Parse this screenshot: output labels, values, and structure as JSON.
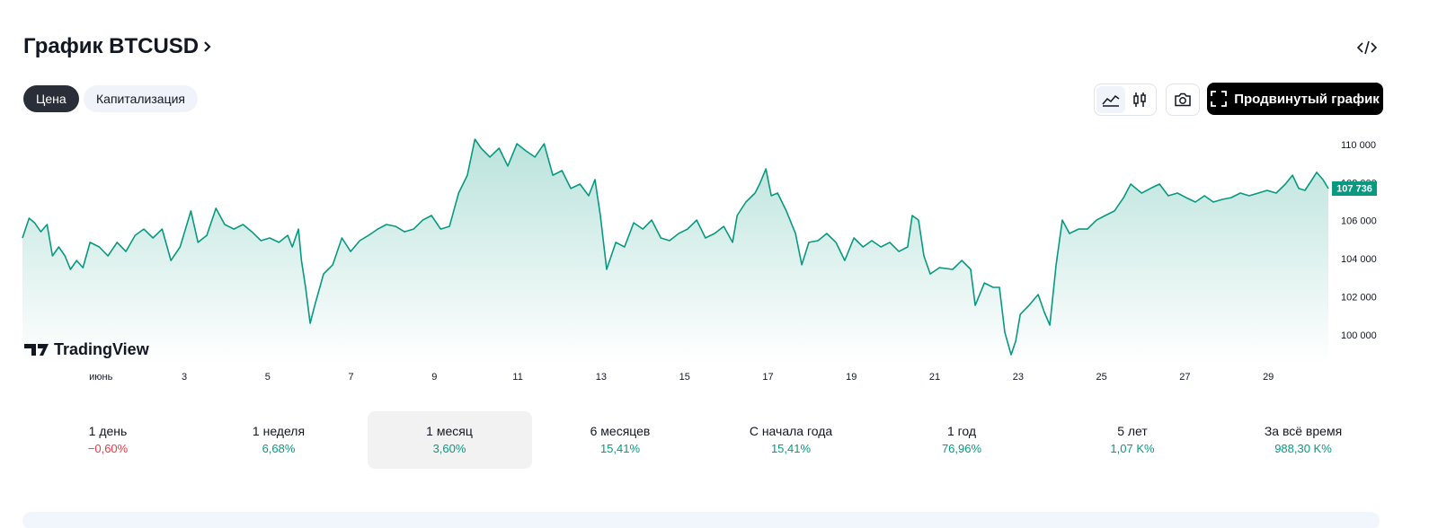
{
  "header": {
    "title": "График BTCUSD",
    "tabs": [
      "Цена",
      "Капитализация"
    ],
    "button": "Продвинутый график"
  },
  "chart_data": {
    "type": "area",
    "watermark": "TradingView",
    "color": "#089981",
    "x": [
      -0.88,
      -0.72,
      -0.59,
      -0.44,
      -0.29,
      -0.16,
      -0.01,
      0.14,
      0.27,
      0.42,
      0.57,
      0.74,
      0.96,
      1.17,
      1.39,
      1.6,
      1.82,
      2.03,
      2.25,
      2.47,
      2.68,
      2.9,
      3.16,
      3.33,
      3.54,
      3.76,
      3.97,
      4.19,
      4.41,
      4.62,
      4.84,
      5.05,
      5.27,
      5.48,
      5.59,
      5.74,
      5.81,
      5.91,
      6.02,
      6.13,
      6.34,
      6.56,
      6.78,
      6.99,
      7.21,
      7.42,
      7.64,
      7.85,
      8.07,
      8.28,
      8.5,
      8.72,
      8.93,
      9.15,
      9.36,
      9.58,
      9.79,
      9.97,
      10.12,
      10.33,
      10.55,
      10.76,
      10.98,
      11.19,
      11.41,
      11.63,
      11.84,
      12.06,
      12.27,
      12.49,
      12.7,
      12.85,
      12.98,
      13.13,
      13.35,
      13.56,
      13.78,
      14.0,
      14.21,
      14.43,
      14.64,
      14.86,
      15.07,
      15.29,
      15.5,
      15.72,
      15.94,
      16.15,
      16.26,
      16.47,
      16.69,
      16.8,
      16.95,
      17.08,
      17.23,
      17.44,
      17.66,
      17.81,
      17.98,
      18.2,
      18.41,
      18.63,
      18.84,
      19.06,
      19.28,
      19.49,
      19.71,
      19.92,
      20.14,
      20.35,
      20.46,
      20.61,
      20.74,
      20.89,
      21.11,
      21.43,
      21.65,
      21.86,
      21.97,
      22.19,
      22.4,
      22.55,
      22.68,
      22.83,
      22.94,
      23.05,
      23.26,
      23.48,
      23.63,
      23.76,
      23.91,
      24.06,
      24.23,
      24.45,
      24.66,
      24.88,
      25.09,
      25.31,
      25.53,
      25.7,
      25.96,
      26.17,
      26.39,
      26.6,
      26.82,
      27.03,
      27.25,
      27.47,
      27.68,
      27.9,
      28.11,
      28.33,
      28.54,
      28.76,
      28.97,
      29.19,
      29.41,
      29.58,
      29.73,
      29.88,
      30.05,
      30.16,
      30.31,
      30.44
    ],
    "values": [
      105140,
      106180,
      105940,
      105470,
      105850,
      104200,
      104670,
      104200,
      103490,
      103960,
      103580,
      104910,
      104670,
      104200,
      104910,
      104430,
      105280,
      105610,
      105140,
      105610,
      103960,
      104670,
      106560,
      104910,
      105280,
      106700,
      105850,
      105610,
      105850,
      105470,
      105000,
      105140,
      104910,
      105280,
      104670,
      105610,
      103960,
      102550,
      100660,
      101600,
      103250,
      103730,
      105140,
      104430,
      105000,
      105280,
      105610,
      105850,
      105750,
      105470,
      105610,
      106080,
      106320,
      105610,
      105750,
      107500,
      108440,
      110330,
      109860,
      109390,
      109860,
      108920,
      110090,
      109720,
      109390,
      110090,
      108440,
      108680,
      107740,
      107970,
      107360,
      108210,
      106320,
      103490,
      104910,
      104670,
      105940,
      105610,
      106080,
      105140,
      105000,
      105380,
      105610,
      106080,
      105140,
      105380,
      105750,
      104910,
      106320,
      107030,
      107500,
      107970,
      108770,
      107360,
      107500,
      106560,
      105380,
      103730,
      104910,
      105000,
      105380,
      104910,
      103960,
      105140,
      104670,
      105000,
      104670,
      104910,
      104430,
      104670,
      106320,
      106080,
      104200,
      103250,
      103580,
      103490,
      103960,
      103490,
      101600,
      102780,
      102550,
      102550,
      100190,
      99010,
      99720,
      101130,
      101600,
      102170,
      101230,
      100570,
      103730,
      106080,
      105380,
      105610,
      105610,
      106080,
      106320,
      106560,
      107260,
      107970,
      107500,
      107740,
      107970,
      107360,
      107500,
      107260,
      107030,
      107360,
      107030,
      107170,
      107260,
      107500,
      107360,
      107500,
      107640,
      107500,
      107970,
      108440,
      107740,
      107640,
      108210,
      108590,
      108210,
      107736
    ],
    "xlim": [
      -0.88,
      30.44
    ],
    "ylim": [
      98540,
      110660
    ],
    "xticks": [
      {
        "value": 1,
        "label": "июнь"
      },
      3,
      5,
      7,
      9,
      11,
      13,
      15,
      17,
      19,
      21,
      23,
      25,
      27,
      29
    ],
    "yticks": [
      {
        "value": 100000,
        "label": "100 000"
      },
      {
        "value": 102000,
        "label": "102 000"
      },
      {
        "value": 104000,
        "label": "104 000"
      },
      {
        "value": 106000,
        "label": "106 000"
      },
      {
        "value": 108000,
        "label": "108 000"
      },
      {
        "value": 110000,
        "label": "110 000"
      }
    ],
    "last_price": {
      "value": 107736,
      "label": "107 736"
    }
  },
  "periods": [
    {
      "label": "1 день",
      "change": "−0,60%",
      "negative": true
    },
    {
      "label": "1 неделя",
      "change": "6,68%"
    },
    {
      "label": "1 месяц",
      "change": "3,60%",
      "selected": true
    },
    {
      "label": "6 месяцев",
      "change": "15,41%"
    },
    {
      "label": "С начала года",
      "change": "15,41%"
    },
    {
      "label": "1 год",
      "change": "76,96%"
    },
    {
      "label": "5 лет",
      "change": "1,07 K%"
    },
    {
      "label": "За всё время",
      "change": "988,30 K%"
    }
  ]
}
